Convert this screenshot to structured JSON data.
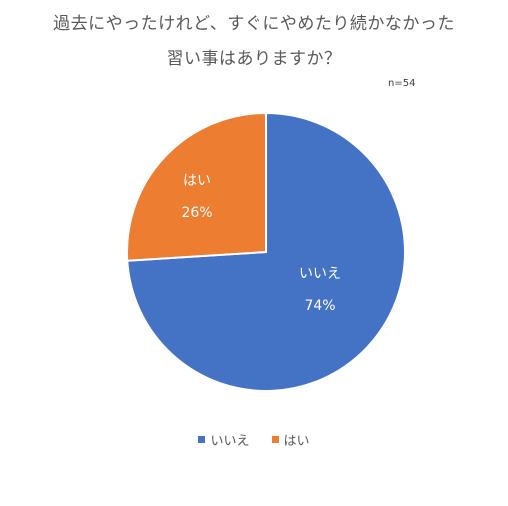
{
  "chart_data": {
    "type": "pie",
    "title_line1": "過去にやったけれど、すぐにやめたり続かなかった",
    "title_line2": "習い事はありますか？",
    "sample_size": "n=54",
    "slices": [
      {
        "name": "いいえ",
        "value": 74,
        "label": "74%",
        "color": "#4472C4"
      },
      {
        "name": "はい",
        "value": 26,
        "label": "26%",
        "color": "#ED7D31"
      }
    ],
    "legend_position": "bottom"
  }
}
